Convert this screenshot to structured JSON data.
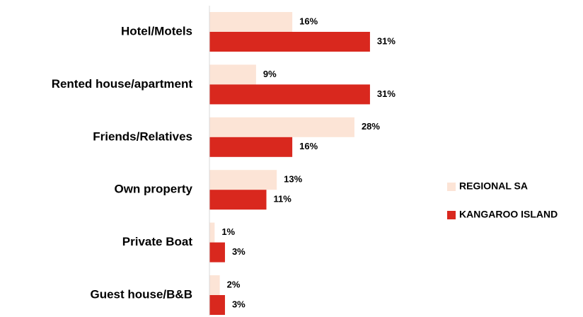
{
  "chart_data": {
    "type": "bar",
    "orientation": "horizontal",
    "categories": [
      "Hotel/Motels",
      "Rented house/apartment",
      "Friends/Relatives",
      "Own property",
      "Private Boat",
      "Guest house/B&B"
    ],
    "series": [
      {
        "name": "REGIONAL SA",
        "color": "#fce4d6",
        "values": [
          16,
          9,
          28,
          13,
          1,
          2
        ],
        "value_labels": [
          "16%",
          "9%",
          "28%",
          "13%",
          "1%",
          "2%"
        ]
      },
      {
        "name": "KANGAROO ISLAND",
        "color": "#d9281e",
        "values": [
          31,
          31,
          16,
          11,
          3,
          3
        ],
        "value_labels": [
          "31%",
          "31%",
          "16%",
          "11%",
          "3%",
          "3%"
        ]
      }
    ],
    "legend": "right"
  }
}
